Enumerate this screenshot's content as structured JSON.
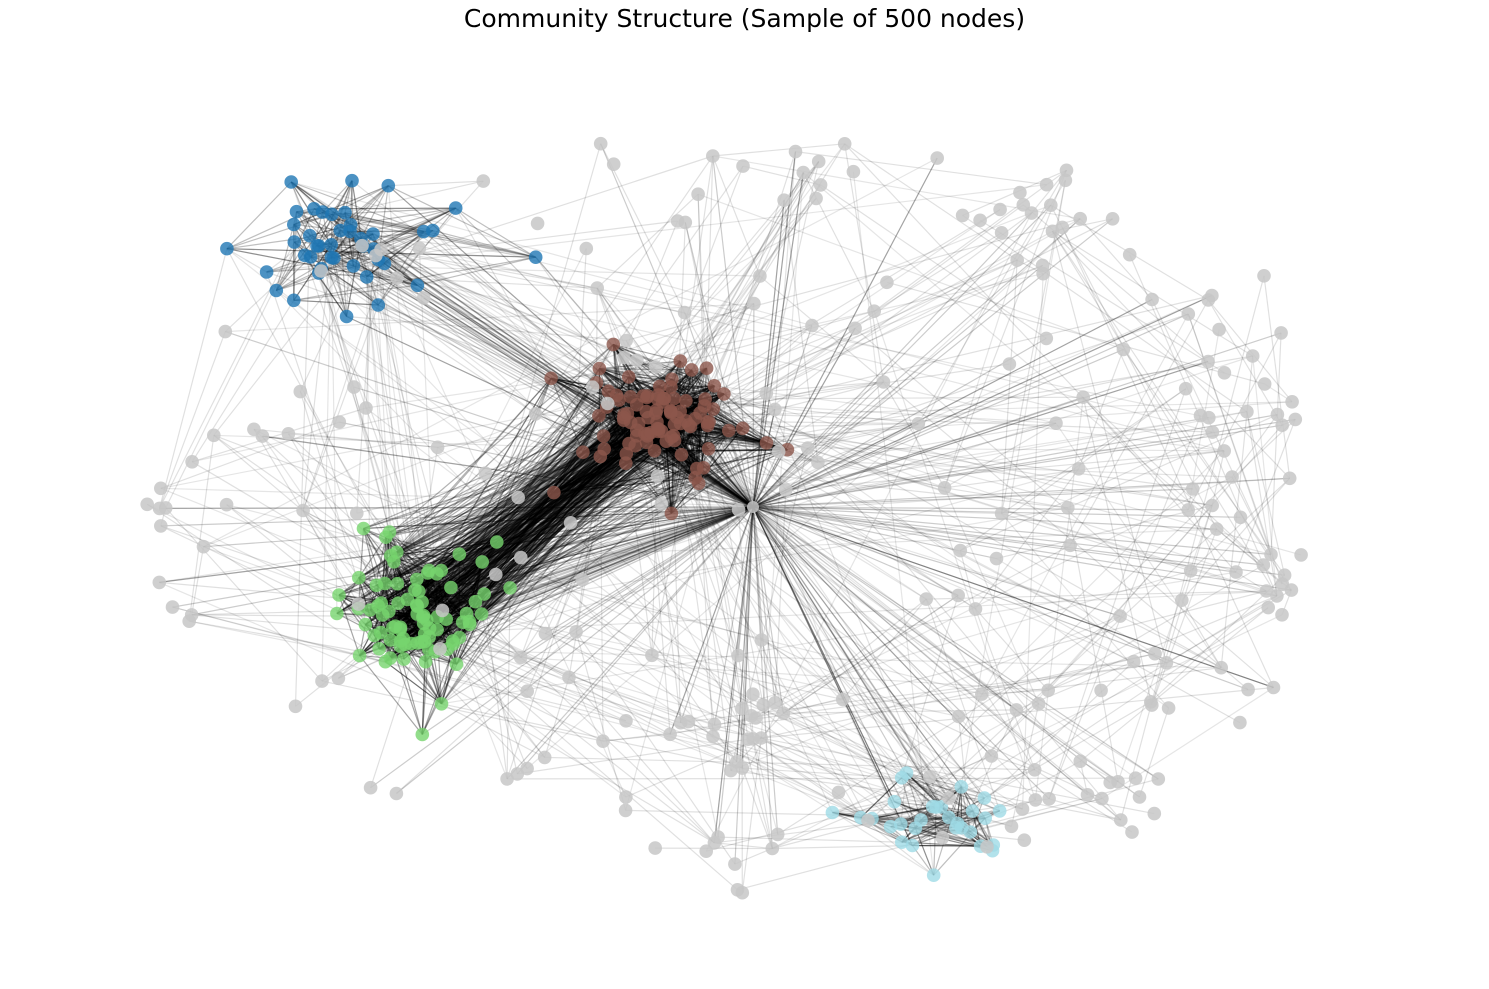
{
  "title": "Community Structure (Sample of 500 nodes)",
  "diagram": {
    "type": "network-graph",
    "node_count_sampled": 500,
    "seed": 7,
    "hub": {
      "community": "other"
    },
    "edge_color": "#000000",
    "communities": [
      {
        "id": "blue",
        "color": "#1f77b4",
        "nodes": 42
      },
      {
        "id": "brown",
        "color": "#8c564b",
        "nodes": 95
      },
      {
        "id": "green",
        "color": "#77d46e",
        "nodes": 84
      },
      {
        "id": "cyan",
        "color": "#9fdbe6",
        "nodes": 29
      },
      {
        "id": "other",
        "color": "#c7c7c7",
        "nodes": 250
      }
    ]
  }
}
